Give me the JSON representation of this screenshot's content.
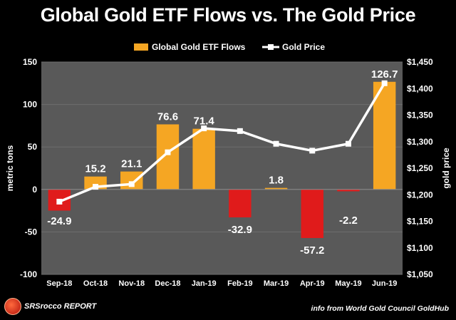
{
  "colors": {
    "background": "#000000",
    "plot_area": "#595959",
    "bar_positive": "#f5a623",
    "bar_negative": "#e01b1b",
    "line": "#ffffff",
    "text": "#ffffff"
  },
  "logo_text": "SRSrocco REPORT",
  "source_note": "info from World Gold Council GoldHub",
  "chart_data": {
    "type": "bar",
    "title": "Global Gold ETF Flows vs. The Gold Price",
    "categories": [
      "Sep-18",
      "Oct-18",
      "Nov-18",
      "Dec-18",
      "Jan-19",
      "Feb-19",
      "Mar-19",
      "Apr-19",
      "May-19",
      "Jun-19"
    ],
    "series": [
      {
        "name": "Global Gold ETF Flows",
        "type": "bar",
        "axis": "left",
        "values": [
          -24.9,
          15.2,
          21.1,
          76.6,
          71.4,
          -32.9,
          1.8,
          -57.2,
          -2.2,
          126.7
        ],
        "data_labels": [
          "-24.9",
          "15.2",
          "21.1",
          "76.6",
          "71.4",
          "-32.9",
          "1.8",
          "-57.2",
          "-2.2",
          "126.7"
        ]
      },
      {
        "name": "Gold Price",
        "type": "line",
        "axis": "right",
        "values": [
          1187,
          1215,
          1220,
          1280,
          1325,
          1320,
          1296,
          1283,
          1296,
          1410
        ]
      }
    ],
    "ylabel": "metric tons",
    "ylabel_right": "gold price",
    "ylim": [
      -100,
      150
    ],
    "ylim_right": [
      1050,
      1450
    ],
    "yticks": [
      -100,
      -50,
      0,
      50,
      100,
      150
    ],
    "ytick_labels": [
      "-100",
      "-50",
      "0",
      "50",
      "100",
      "150"
    ],
    "yticks_right": [
      1050,
      1100,
      1150,
      1200,
      1250,
      1300,
      1350,
      1400,
      1450
    ],
    "ytick_labels_right": [
      "$1,050",
      "$1,100",
      "$1,150",
      "$1,200",
      "$1,250",
      "$1,300",
      "$1,350",
      "$1,400",
      "$1,450"
    ],
    "grid": true,
    "legend_position": "top"
  }
}
